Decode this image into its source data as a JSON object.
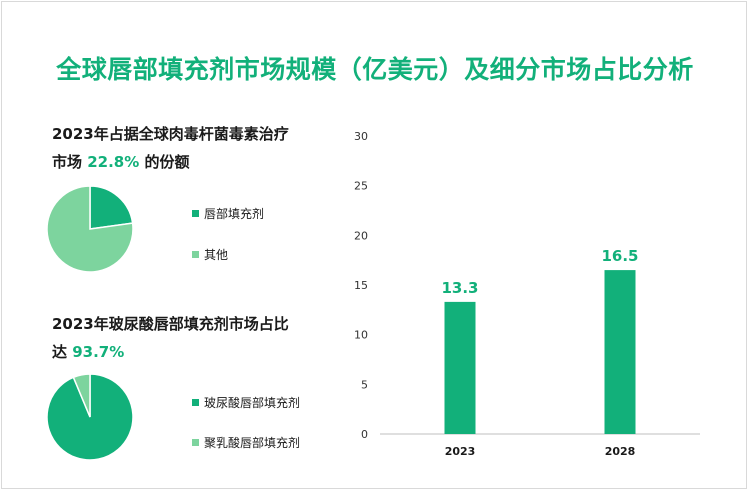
{
  "title": "全球唇部填充剂市场规模（亿美元）及细分市场占比分析",
  "colors": {
    "accent": "#12b07a",
    "light": "#7dd49e"
  },
  "pie1": {
    "caption_prefix": "2023年占据全球肉毒杆菌毒素治疗市场 ",
    "caption_pct": "22.8%",
    "caption_suffix": " 的份额",
    "legend": [
      "唇部填充剂",
      "其他"
    ]
  },
  "pie2": {
    "caption_prefix": "2023年玻尿酸唇部填充剂市场占比达 ",
    "caption_pct": "93.7%",
    "caption_suffix": "",
    "legend": [
      "玻尿酸唇部填充剂",
      "聚乳酸唇部填充剂"
    ]
  },
  "chart_data": [
    {
      "type": "pie",
      "title": "2023年占据全球肉毒杆菌毒素治疗市场 22.8% 的份额",
      "categories": [
        "唇部填充剂",
        "其他"
      ],
      "values": [
        22.8,
        77.2
      ]
    },
    {
      "type": "pie",
      "title": "2023年玻尿酸唇部填充剂市场占比达 93.7%",
      "categories": [
        "玻尿酸唇部填充剂",
        "聚乳酸唇部填充剂"
      ],
      "values": [
        93.7,
        6.3
      ]
    },
    {
      "type": "bar",
      "title": "全球唇部填充剂市场规模（亿美元）",
      "categories": [
        "2023",
        "2028"
      ],
      "values": [
        13.3,
        16.5
      ],
      "data_labels": [
        "13.3",
        "16.5"
      ],
      "ylim": [
        0,
        30
      ],
      "yticks": [
        0,
        5,
        10,
        15,
        20,
        25,
        30
      ],
      "grid": false
    }
  ]
}
